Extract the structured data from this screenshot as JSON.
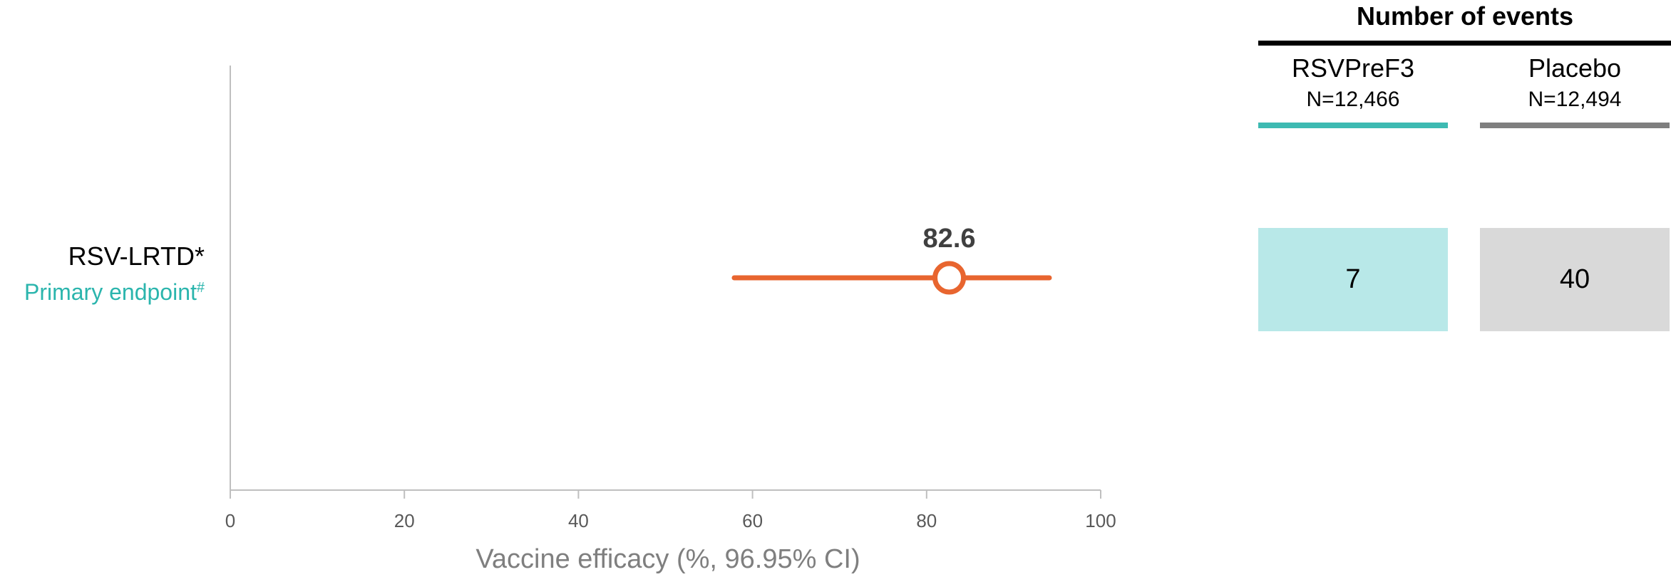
{
  "chart_data": {
    "type": "forest",
    "xlabel": "Vaccine efficacy (%, 96.95% CI)",
    "xlim": [
      0,
      100
    ],
    "xticks": [
      0,
      20,
      40,
      60,
      80,
      100
    ],
    "grid": false,
    "rows": [
      {
        "label": "RSV-LRTD*",
        "sublabel": "Primary endpoint",
        "sublabel_superscript": "#",
        "estimate": 82.6,
        "estimate_label": "82.6",
        "ci_lower": 57.9,
        "ci_upper": 94.1
      }
    ],
    "colors": {
      "ci": "#e8652f",
      "point_fill": "#ffffff",
      "axis": "#bfbfbf",
      "sublabel": "#2bb5ad"
    }
  },
  "events_table": {
    "title": "Number of events",
    "columns": [
      {
        "name": "RSVPreF3",
        "n": "N=12,466",
        "count": "7",
        "bar_color": "#3dbab2",
        "box_color": "#b8e8e8"
      },
      {
        "name": "Placebo",
        "n": "N=12,494",
        "count": "40",
        "bar_color": "#7f7f7f",
        "box_color": "#d9d9d9"
      }
    ]
  }
}
